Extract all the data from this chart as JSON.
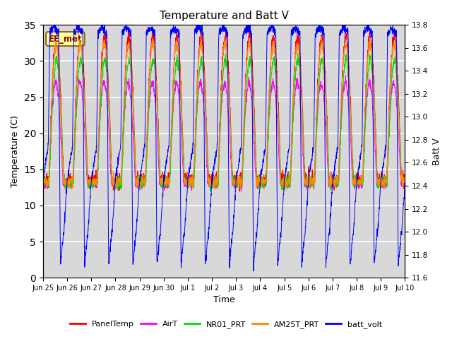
{
  "title": "Temperature and Batt V",
  "xlabel": "Time",
  "ylabel_left": "Temperature (C)",
  "ylabel_right": "Batt V",
  "annotation": "EE_met",
  "ylim_left": [
    0,
    35
  ],
  "ylim_right": [
    11.6,
    13.8
  ],
  "yticks_left": [
    0,
    5,
    10,
    15,
    20,
    25,
    30,
    35
  ],
  "yticks_right": [
    11.6,
    11.8,
    12.0,
    12.2,
    12.4,
    12.6,
    12.8,
    13.0,
    13.2,
    13.4,
    13.6,
    13.8
  ],
  "series_colors": {
    "PanelTemp": "#ff0000",
    "AirT": "#ff00ff",
    "NR01_PRT": "#00dd00",
    "AM25T_PRT": "#ff8800",
    "batt_volt": "#0000ff"
  },
  "legend_entries": [
    "PanelTemp",
    "AirT",
    "NR01_PRT",
    "AM25T_PRT",
    "batt_volt"
  ],
  "bg_color": "#d8d8d8",
  "n_days": 15,
  "pts_per_day": 144,
  "temp_night_base": 13.5,
  "temp_day_peak": 32.0,
  "batt_day_high": 13.75,
  "batt_night_low": 11.72
}
